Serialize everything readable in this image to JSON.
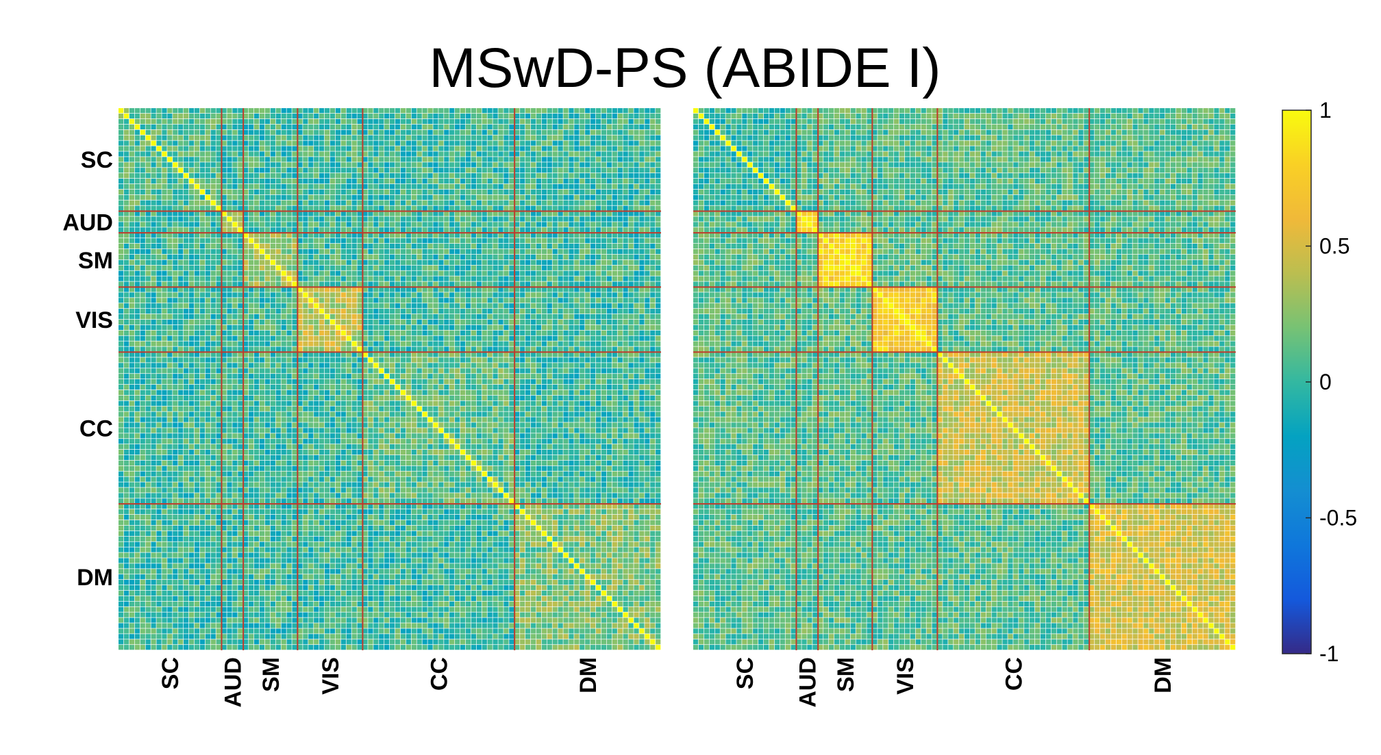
{
  "chart_data": {
    "type": "heatmap",
    "title": "MSwD-PS (ABIDE I)",
    "colormap": "parula",
    "node_count": 100,
    "networks": [
      {
        "label": "SC",
        "start": 0,
        "end": 19
      },
      {
        "label": "AUD",
        "start": 19,
        "end": 23
      },
      {
        "label": "SM",
        "start": 23,
        "end": 33
      },
      {
        "label": "VIS",
        "start": 33,
        "end": 45
      },
      {
        "label": "CC",
        "start": 45,
        "end": 73
      },
      {
        "label": "DM",
        "start": 73,
        "end": 100
      }
    ],
    "boundary_color": "#c0392b",
    "panels": [
      {
        "id": "left",
        "show_row_labels": true,
        "within_network_level": {
          "SC": 0.08,
          "AUD": 0.3,
          "SM": 0.3,
          "VIS": 0.4,
          "CC": 0.12,
          "DM": 0.2
        },
        "cross_network_level": 0.02,
        "noise": 0.22,
        "node_strength": []
      },
      {
        "id": "right",
        "show_row_labels": false,
        "within_network_level": {
          "SC": 0.0,
          "AUD": 0.75,
          "SM": 0.78,
          "VIS": 0.75,
          "CC": 0.45,
          "DM": 0.5
        },
        "cross_network_level": 0.1,
        "noise": 0.2,
        "node_strength": []
      }
    ],
    "colorbar": {
      "min": -1,
      "max": 1,
      "ticks": [
        1,
        0.5,
        0,
        -0.5,
        -1
      ],
      "tick_labels": [
        "1",
        "0.5",
        "0",
        "-0.5",
        "-1"
      ]
    }
  }
}
